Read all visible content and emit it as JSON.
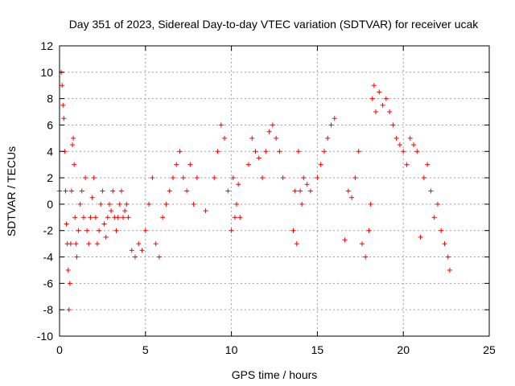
{
  "chart_data": {
    "type": "scatter",
    "title": "Day 351 of 2023, Sidereal Day-to-day VTEC variation (SDTVAR) for receiver ucak",
    "xlabel": "GPS time / hours",
    "ylabel": "SDTVAR / TECUs",
    "xlim": [
      0,
      25
    ],
    "ylim": [
      -10,
      12
    ],
    "xticks": [
      0,
      5,
      10,
      15,
      20,
      25
    ],
    "yticks": [
      -10,
      -8,
      -6,
      -4,
      -2,
      0,
      2,
      4,
      6,
      8,
      10,
      12
    ],
    "xtick_labels": [
      "0",
      "5",
      "10",
      "15",
      "20",
      "25"
    ],
    "ytick_labels": [
      "-10",
      "-8",
      "-6",
      "-4",
      "-2",
      "0",
      "2",
      "4",
      "6",
      "8",
      "10",
      "12"
    ],
    "grid": true,
    "marker": "+",
    "series": [
      {
        "name": "SDTVAR",
        "color": "#ff0000",
        "x": [
          0.0,
          0.1,
          0.15,
          0.2,
          0.25,
          0.3,
          0.35,
          0.4,
          0.45,
          0.5,
          0.55,
          0.6,
          0.65,
          0.7,
          0.75,
          0.8,
          0.85,
          0.9,
          0.95,
          1.0,
          1.1,
          1.2,
          1.3,
          1.4,
          1.5,
          1.6,
          1.7,
          1.8,
          1.9,
          2.0,
          2.1,
          2.2,
          2.3,
          2.4,
          2.5,
          2.6,
          2.7,
          2.8,
          2.9,
          3.0,
          3.1,
          3.2,
          3.3,
          3.4,
          3.5,
          3.6,
          3.7,
          3.8,
          3.9,
          4.0,
          4.2,
          4.4,
          4.6,
          4.8,
          5.0,
          5.2,
          5.4,
          5.6,
          5.8,
          6.0,
          6.2,
          6.4,
          6.6,
          6.8,
          7.0,
          7.2,
          7.4,
          7.6,
          7.8,
          8.0,
          8.5,
          9.0,
          9.2,
          9.4,
          9.6,
          9.8,
          10.0,
          10.1,
          10.2,
          10.3,
          10.4,
          10.5,
          11.0,
          11.2,
          11.4,
          11.6,
          11.8,
          12.0,
          12.2,
          12.4,
          12.6,
          12.8,
          13.0,
          13.6,
          13.7,
          13.8,
          13.9,
          14.0,
          14.1,
          14.2,
          14.4,
          14.6,
          15.0,
          15.2,
          15.4,
          15.6,
          15.8,
          16.0,
          16.6,
          16.8,
          17.0,
          17.2,
          17.4,
          17.6,
          17.8,
          18.0,
          18.1,
          18.2,
          18.3,
          18.4,
          18.6,
          18.8,
          19.0,
          19.2,
          19.4,
          19.6,
          19.8,
          20.0,
          20.2,
          20.4,
          20.6,
          20.8,
          21.0,
          21.2,
          21.4,
          21.6,
          21.8,
          22.0,
          22.2,
          22.4,
          22.6,
          22.7
        ],
        "y": [
          1.0,
          10.0,
          9.0,
          7.5,
          6.5,
          4.0,
          1.0,
          -1.5,
          -3.0,
          -5.0,
          -8.0,
          -6.0,
          -3.0,
          1.0,
          4.5,
          5.0,
          3.0,
          -1.0,
          -3.0,
          -4.0,
          -2.0,
          0.0,
          1.0,
          -1.0,
          2.0,
          -2.0,
          -3.0,
          -1.0,
          0.5,
          2.0,
          -1.0,
          -3.0,
          -2.0,
          0.0,
          1.0,
          -1.5,
          -2.5,
          -1.0,
          0.0,
          -0.5,
          1.0,
          -1.0,
          -2.0,
          -1.0,
          0.0,
          1.0,
          -1.0,
          -0.5,
          0.0,
          -1.0,
          -3.5,
          -4.0,
          -3.0,
          -3.5,
          -2.0,
          0.0,
          2.0,
          -3.0,
          -4.0,
          -1.0,
          0.0,
          1.0,
          2.0,
          3.0,
          4.0,
          2.0,
          1.0,
          3.0,
          0.0,
          2.0,
          -0.5,
          2.0,
          4.0,
          6.0,
          5.0,
          1.0,
          -2.0,
          2.0,
          -1.0,
          0.0,
          1.5,
          -1.0,
          3.0,
          5.0,
          4.0,
          3.5,
          2.0,
          4.0,
          5.5,
          6.0,
          5.0,
          4.0,
          2.0,
          -2.0,
          1.0,
          -3.0,
          4.0,
          1.0,
          0.0,
          2.0,
          1.5,
          1.0,
          2.0,
          3.0,
          4.0,
          5.0,
          6.0,
          6.5,
          -2.7,
          1.0,
          0.5,
          2.0,
          4.0,
          -3.0,
          -4.0,
          -2.0,
          0.0,
          8.0,
          9.0,
          7.0,
          8.5,
          7.5,
          8.0,
          7.0,
          6.0,
          5.0,
          4.5,
          4.0,
          3.0,
          5.0,
          4.5,
          4.0,
          -2.5,
          2.0,
          3.0,
          1.0,
          -1.0,
          0.0,
          -2.0,
          -3.0,
          -4.0,
          -5.0
        ]
      }
    ]
  }
}
